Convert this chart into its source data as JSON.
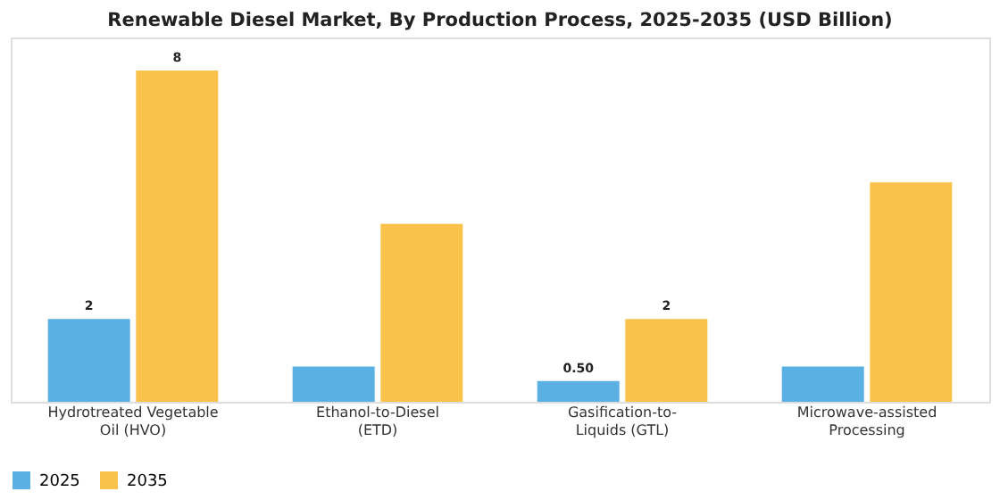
{
  "chart_data": {
    "type": "bar",
    "title": "Renewable Diesel Market, By Production Process, 2025-2035 (USD Billion)",
    "categories": [
      "Hydrotreated Vegetable Oil (HVO)",
      "Ethanol-to-Diesel (ETD)",
      "Gasification-to-Liquids (GTL)",
      "Microwave-assisted Processing"
    ],
    "series": [
      {
        "name": "2025",
        "color": "#5aafe3",
        "values": [
          2,
          0.85,
          0.5,
          0.85
        ],
        "value_labels": [
          "2",
          null,
          "0.50",
          null
        ]
      },
      {
        "name": "2035",
        "color": "#f9c34b",
        "values": [
          8,
          4.3,
          2,
          5.3
        ],
        "value_labels": [
          "8",
          null,
          "2",
          null
        ]
      }
    ],
    "ylim": [
      0,
      8.8
    ],
    "grid": false,
    "legend": "bottom",
    "tick_labels": "x"
  }
}
